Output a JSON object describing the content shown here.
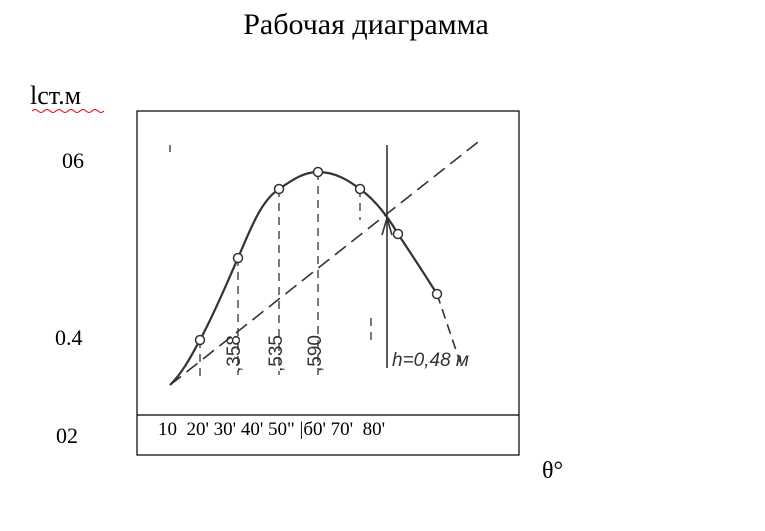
{
  "header": {
    "title": "Рабочая диаграмма"
  },
  "axes": {
    "y_label": "lст.м",
    "y_labels": [
      "06",
      "0.4",
      "02"
    ],
    "x_labels": "10  20' 30' 40' 50\" |б0' 70'  80'",
    "x_label": "θ°"
  },
  "annotations": {
    "values": [
      ",358",
      ",535",
      ",590"
    ],
    "height": "h=0,48 м"
  }
}
